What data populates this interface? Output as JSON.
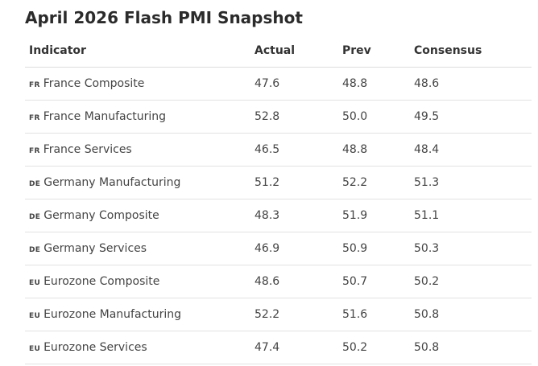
{
  "title": "April 2026 Flash PMI Snapshot",
  "columns": [
    "Indicator",
    "Actual",
    "Prev",
    "Consensus"
  ],
  "rows": [
    {
      "code": "FR",
      "name": "France Composite",
      "actual": "47.6",
      "prev": "48.8",
      "consensus": "48.6"
    },
    {
      "code": "FR",
      "name": "France Manufacturing",
      "actual": "52.8",
      "prev": "50.0",
      "consensus": "49.5"
    },
    {
      "code": "FR",
      "name": "France Services",
      "actual": "46.5",
      "prev": "48.8",
      "consensus": "48.4"
    },
    {
      "code": "DE",
      "name": "Germany Manufacturing",
      "actual": "51.2",
      "prev": "52.2",
      "consensus": "51.3"
    },
    {
      "code": "DE",
      "name": "Germany Composite",
      "actual": "48.3",
      "prev": "51.9",
      "consensus": "51.1"
    },
    {
      "code": "DE",
      "name": "Germany Services",
      "actual": "46.9",
      "prev": "50.9",
      "consensus": "50.3"
    },
    {
      "code": "EU",
      "name": "Eurozone Composite",
      "actual": "48.6",
      "prev": "50.7",
      "consensus": "50.2"
    },
    {
      "code": "EU",
      "name": "Eurozone Manufacturing",
      "actual": "52.2",
      "prev": "51.6",
      "consensus": "50.8"
    },
    {
      "code": "EU",
      "name": "Eurozone Services",
      "actual": "47.4",
      "prev": "50.2",
      "consensus": "50.8"
    }
  ]
}
